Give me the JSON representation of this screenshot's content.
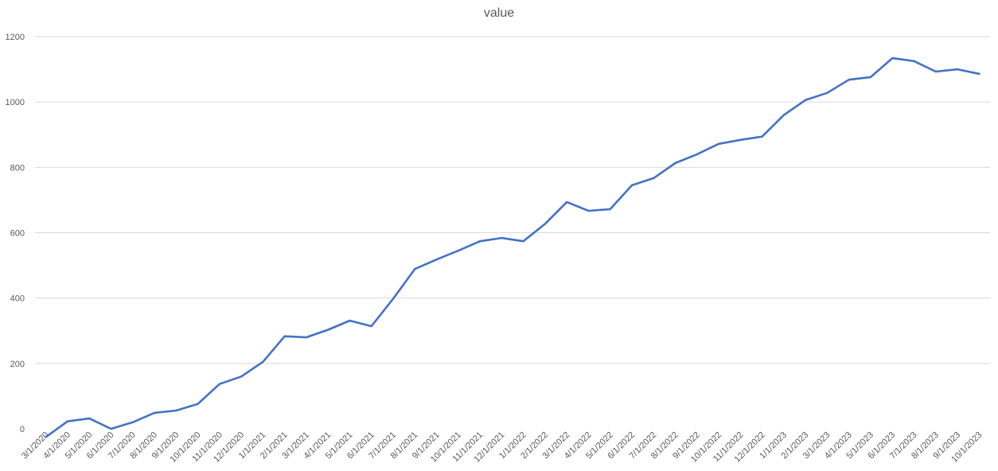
{
  "chart_data": {
    "type": "line",
    "title": "value",
    "xlabel": "",
    "ylabel": "",
    "ylim": [
      0,
      1200
    ],
    "yticks": [
      0,
      200,
      400,
      600,
      800,
      1000,
      1200
    ],
    "grid": true,
    "legend": "none",
    "categories": [
      "3/1/2020",
      "4/1/2020",
      "5/1/2020",
      "6/1/2020",
      "7/1/2020",
      "8/1/2020",
      "9/1/2020",
      "10/1/2020",
      "11/1/2020",
      "12/1/2020",
      "1/1/2021",
      "2/1/2021",
      "3/1/2021",
      "4/1/2021",
      "5/1/2021",
      "6/1/2021",
      "7/1/2021",
      "8/1/2021",
      "9/1/2021",
      "10/1/2021",
      "11/1/2021",
      "12/1/2021",
      "1/1/2022",
      "2/1/2022",
      "3/1/2022",
      "4/1/2022",
      "5/1/2022",
      "6/1/2022",
      "7/1/2022",
      "8/1/2022",
      "9/1/2022",
      "10/1/2022",
      "11/1/2022",
      "12/1/2022",
      "1/1/2023",
      "2/1/2023",
      "3/1/2023",
      "4/1/2023",
      "5/1/2023",
      "6/1/2023",
      "7/1/2023",
      "8/1/2023",
      "9/1/2023",
      "10/1/2023"
    ],
    "series": [
      {
        "color": "#4472c4",
        "values": [
          -25,
          23,
          32,
          0,
          20,
          49,
          56,
          76,
          137,
          160,
          205,
          283,
          280,
          303,
          331,
          314,
          398,
          489,
          518,
          545,
          574,
          584,
          574,
          627,
          694,
          667,
          672,
          745,
          767,
          813,
          840,
          872,
          884,
          894,
          960,
          1006,
          1028,
          1068,
          1076,
          1134,
          1125,
          1093,
          1100,
          1086
        ]
      }
    ]
  }
}
